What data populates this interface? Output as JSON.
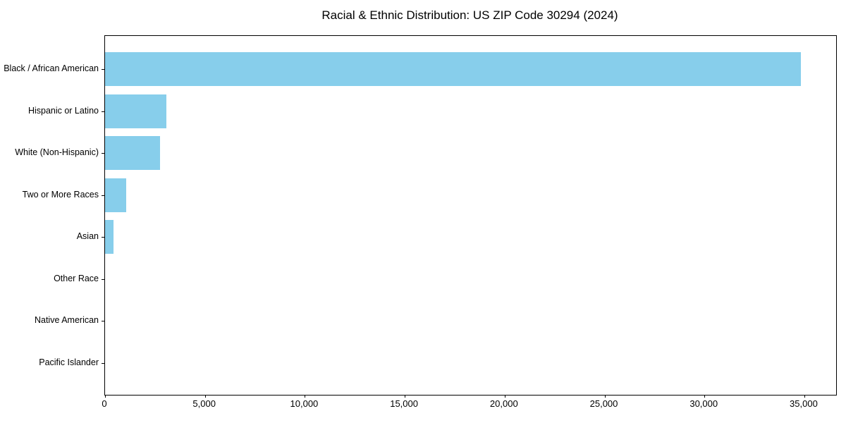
{
  "chart_data": {
    "type": "bar",
    "orientation": "horizontal",
    "title": "Racial & Ethnic Distribution: US ZIP Code 30294 (2024)",
    "categories": [
      "Black / African American",
      "Hispanic or Latino",
      "White (Non-Hispanic)",
      "Two or More Races",
      "Asian",
      "Other Race",
      "Native American",
      "Pacific Islander"
    ],
    "values": [
      34820,
      3060,
      2760,
      1070,
      420,
      0,
      0,
      0
    ],
    "xlabel": "",
    "ylabel": "",
    "xlim": [
      0,
      36590
    ],
    "xticks": [
      0,
      5000,
      10000,
      15000,
      20000,
      25000,
      30000,
      35000
    ],
    "xtick_labels": [
      "0",
      "5,000",
      "10,000",
      "15,000",
      "20,000",
      "25,000",
      "30,000",
      "35,000"
    ],
    "bar_color": "#87CEEB",
    "spine_color": "#000000",
    "text_color": "#000000",
    "background_color": "#ffffff",
    "grid": false,
    "legend": null
  }
}
